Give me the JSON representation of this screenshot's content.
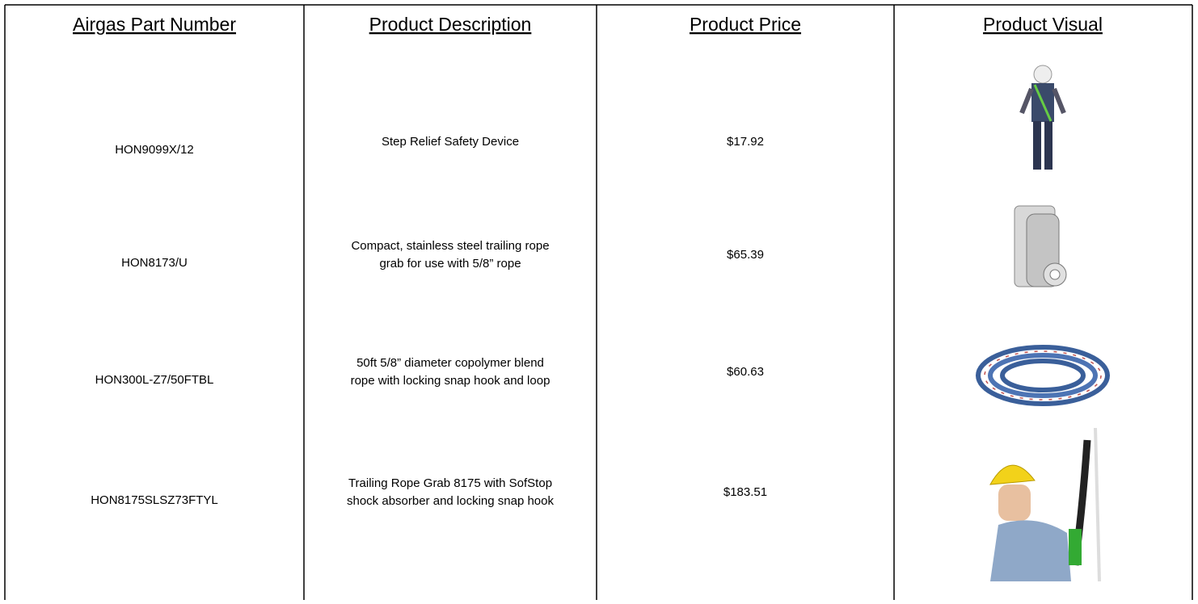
{
  "table": {
    "headers": [
      "Airgas Part Number",
      "Product Description",
      "Product Price",
      "Product Visual"
    ],
    "rows": [
      {
        "part": "HON9099X/12",
        "description": [
          "Step Relief Safety Device"
        ],
        "price": "$17.92"
      },
      {
        "part": "HON8173/U",
        "description": [
          "Compact, stainless steel trailing rope",
          "grab for use with 5/8” rope"
        ],
        "price": "$65.39"
      },
      {
        "part": "HON300L-Z7/50FTBL",
        "description": [
          "50ft 5/8” diameter copolymer blend",
          "rope with locking snap hook and loop"
        ],
        "price": "$60.63"
      },
      {
        "part": "HON8175SLSZ73FTYL",
        "description": [
          "Trailing Rope Grab 8175 with SofStop",
          "shock absorber and locking snap hook"
        ],
        "price": "$183.51"
      }
    ]
  }
}
